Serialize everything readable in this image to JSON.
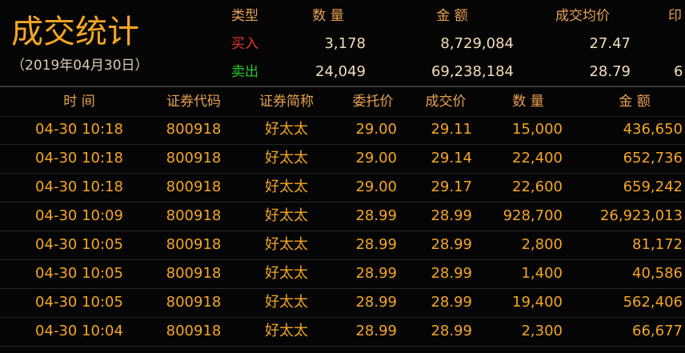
{
  "header": {
    "title": "成交统计",
    "date": "（2019年04月30日）"
  },
  "summary": {
    "columns": [
      "类型",
      "数 量",
      "金 额",
      "成交均价",
      "印"
    ],
    "rows": [
      [
        "买入",
        "3,178",
        "8,729,084",
        "27.47"
      ],
      [
        "卖出",
        "24,049",
        "69,238,184",
        "28.79",
        "6"
      ]
    ]
  },
  "table": {
    "columns": [
      "时 间",
      "证券代码",
      "证券简称",
      "委托价",
      "成交价",
      "数 量",
      "金 额"
    ],
    "rows": [
      [
        "04-30 10:18",
        "800918",
        "好太太",
        "29.00",
        "29.11",
        "15,000",
        "436,650"
      ],
      [
        "04-30 10:18",
        "800918",
        "好太太",
        "29.00",
        "29.14",
        "22,400",
        "652,736"
      ],
      [
        "04-30 10:18",
        "800918",
        "好太太",
        "29.00",
        "29.17",
        "22,600",
        "659,242"
      ],
      [
        "04-30 10:09",
        "800918",
        "好太太",
        "28.99",
        "28.99",
        "928,700",
        "26,923,013"
      ],
      [
        "04-30 10:05",
        "800918",
        "好太太",
        "28.99",
        "28.99",
        "2,800",
        "81,172"
      ],
      [
        "04-30 10:05",
        "800918",
        "好太太",
        "28.99",
        "28.99",
        "1,400",
        "40,586"
      ],
      [
        "04-30 10:05",
        "800918",
        "好太太",
        "28.99",
        "28.99",
        "19,400",
        "562,406"
      ],
      [
        "04-30 10:04",
        "800918",
        "好太太",
        "28.99",
        "28.99",
        "2,300",
        "66,677"
      ]
    ]
  }
}
